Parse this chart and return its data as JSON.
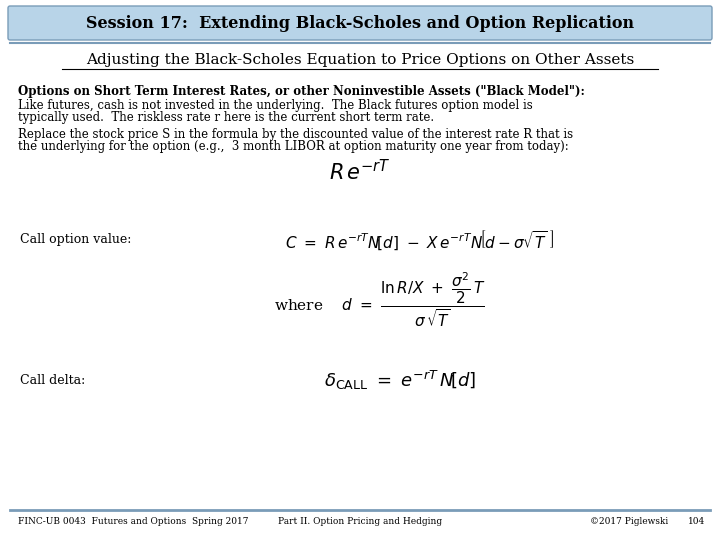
{
  "title": "Session 17:  Extending Black-Scholes and Option Replication",
  "subtitle": "Adjusting the Black-Scholes Equation to Price Options on Other Assets",
  "title_bg": "#b8d4e8",
  "body_bg": "#ffffff",
  "footer_left": "FINC-UB 0043  Futures and Options  Spring 2017",
  "footer_center": "Part II. Option Pricing and Hedging",
  "footer_right": "©2017 Piglewski",
  "footer_page": "104",
  "text_bold_line1": "Options on Short Term Interest Rates, or other Noninvestible Assets (\"Black Model\"):",
  "text_line2": "Like futures, cash is not invested in the underlying.  The Black futures option model is",
  "text_line3": "typically used.  The riskless rate r here is the current short term rate.",
  "text_line4": "Replace the stock price S in the formula by the discounted value of the interest rate R that is",
  "text_line5": "the underlying for the option (e.g.,  3 month LIBOR at option maturity one year from today):",
  "call_label": "Call option value:",
  "delta_label": "Call delta:"
}
